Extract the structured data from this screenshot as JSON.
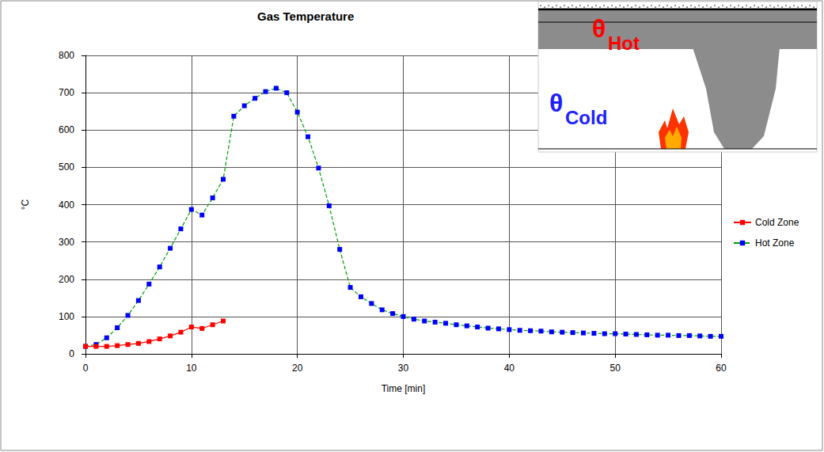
{
  "chart_data": {
    "type": "line",
    "title": "Gas Temperature",
    "x_label": "Time [min]",
    "y_label": "°C",
    "xlim": [
      0,
      60
    ],
    "xticks": [
      0,
      10,
      20,
      30,
      40,
      50,
      60
    ],
    "ylim": [
      0,
      800
    ],
    "yticks": [
      0,
      100,
      200,
      300,
      400,
      500,
      600,
      700,
      800
    ],
    "grid": true,
    "legend": "right",
    "marker": "square",
    "series": [
      {
        "name": "Cold Zone",
        "color": "#ff0000",
        "line_style": "solid",
        "x": [
          0,
          1,
          2,
          3,
          4,
          5,
          6,
          7,
          8,
          9,
          10,
          11,
          12,
          13
        ],
        "values": [
          20,
          20,
          20,
          22,
          25,
          28,
          33,
          40,
          48,
          58,
          72,
          68,
          78,
          88
        ]
      },
      {
        "name": "Hot Zone",
        "color": "#0000ff",
        "line_style": "dashed",
        "x": [
          0,
          1,
          2,
          3,
          4,
          5,
          6,
          7,
          8,
          9,
          10,
          11,
          12,
          13,
          14,
          15,
          16,
          17,
          18,
          19,
          20,
          21,
          22,
          23,
          24,
          25,
          26,
          27,
          28,
          29,
          30,
          31,
          32,
          33,
          34,
          35,
          36,
          37,
          38,
          39,
          40,
          41,
          42,
          43,
          44,
          45,
          46,
          47,
          48,
          49,
          50,
          51,
          52,
          53,
          54,
          55,
          56,
          57,
          58,
          59,
          60
        ],
        "values": [
          20,
          25,
          43,
          70,
          103,
          143,
          187,
          233,
          283,
          335,
          387,
          372,
          418,
          468,
          637,
          665,
          685,
          703,
          712,
          700,
          648,
          582,
          498,
          397,
          280,
          178,
          153,
          135,
          118,
          108,
          100,
          93,
          88,
          85,
          82,
          78,
          75,
          72,
          69,
          67,
          65,
          63,
          62,
          61,
          59,
          58,
          57,
          56,
          55,
          54,
          54,
          53,
          52,
          51,
          50,
          50,
          49,
          49,
          48,
          47,
          47
        ]
      }
    ],
    "annotations": [
      {
        "text": "θ",
        "subscript": "Hot",
        "color": "#ff0000"
      },
      {
        "text": "θ",
        "subscript": "Cold",
        "color": "#2020ff"
      }
    ]
  }
}
